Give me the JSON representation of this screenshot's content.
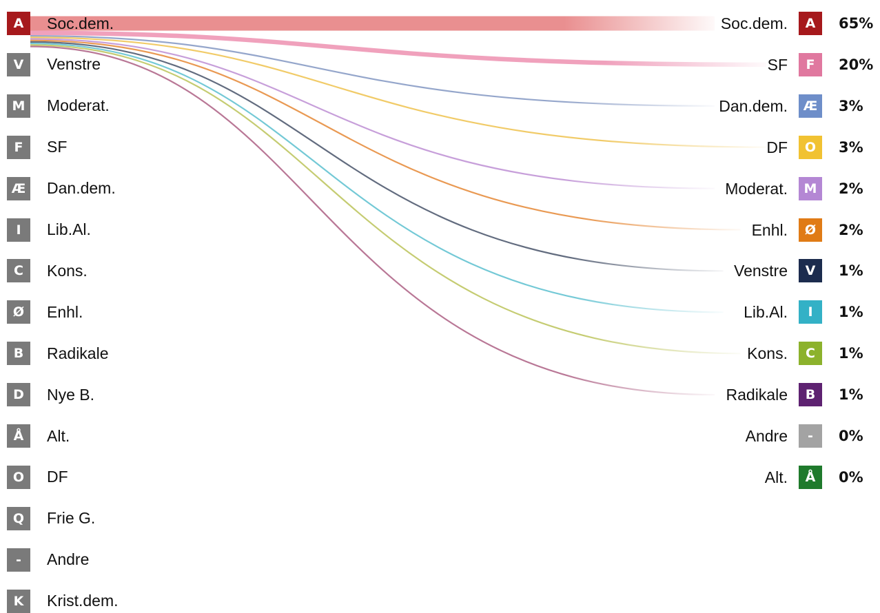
{
  "chart_data": {
    "type": "sankey",
    "source": {
      "code": "A",
      "name": "Soc.dem.",
      "color": "#a6191c"
    },
    "left_parties": [
      {
        "code": "A",
        "name": "Soc.dem.",
        "color": "#a6191c"
      },
      {
        "code": "V",
        "name": "Venstre",
        "color": "#7a7a7a"
      },
      {
        "code": "M",
        "name": "Moderat.",
        "color": "#7a7a7a"
      },
      {
        "code": "F",
        "name": "SF",
        "color": "#7a7a7a"
      },
      {
        "code": "Æ",
        "name": "Dan.dem.",
        "color": "#7a7a7a"
      },
      {
        "code": "I",
        "name": "Lib.Al.",
        "color": "#7a7a7a"
      },
      {
        "code": "C",
        "name": "Kons.",
        "color": "#7a7a7a"
      },
      {
        "code": "Ø",
        "name": "Enhl.",
        "color": "#7a7a7a"
      },
      {
        "code": "B",
        "name": "Radikale",
        "color": "#7a7a7a"
      },
      {
        "code": "D",
        "name": "Nye B.",
        "color": "#7a7a7a"
      },
      {
        "code": "Å",
        "name": "Alt.",
        "color": "#7a7a7a"
      },
      {
        "code": "O",
        "name": "DF",
        "color": "#7a7a7a"
      },
      {
        "code": "Q",
        "name": "Frie G.",
        "color": "#7a7a7a"
      },
      {
        "code": "-",
        "name": "Andre",
        "color": "#7a7a7a"
      },
      {
        "code": "K",
        "name": "Krist.dem.",
        "color": "#7a7a7a"
      }
    ],
    "targets": [
      {
        "code": "A",
        "name": "Soc.dem.",
        "value": 65,
        "label": "65%",
        "color": "#a6191c",
        "flow_color": "#e8898a"
      },
      {
        "code": "F",
        "name": "SF",
        "value": 20,
        "label": "20%",
        "color": "#e0789f",
        "flow_color": "#ef9cb9"
      },
      {
        "code": "Æ",
        "name": "Dan.dem.",
        "value": 3,
        "label": "3%",
        "color": "#6e8ec9",
        "flow_color": "#8fa1c8"
      },
      {
        "code": "O",
        "name": "DF",
        "value": 3,
        "label": "3%",
        "color": "#f1c232",
        "flow_color": "#f0c860"
      },
      {
        "code": "M",
        "name": "Moderat.",
        "value": 2,
        "label": "2%",
        "color": "#b487d4",
        "flow_color": "#c49ad8"
      },
      {
        "code": "Ø",
        "name": "Enhl.",
        "value": 2,
        "label": "2%",
        "color": "#e07b16",
        "flow_color": "#e8944a"
      },
      {
        "code": "V",
        "name": "Venstre",
        "value": 1,
        "label": "1%",
        "color": "#1c2c4e",
        "flow_color": "#5a6478"
      },
      {
        "code": "I",
        "name": "Lib.Al.",
        "value": 1,
        "label": "1%",
        "color": "#33b1c6",
        "flow_color": "#6cc6d4"
      },
      {
        "code": "C",
        "name": "Kons.",
        "value": 1,
        "label": "1%",
        "color": "#8cb22c",
        "flow_color": "#c2c96a"
      },
      {
        "code": "B",
        "name": "Radikale",
        "value": 1,
        "label": "1%",
        "color": "#5e2271",
        "flow_color": "#b57090"
      },
      {
        "code": "-",
        "name": "Andre",
        "value": 0,
        "label": "0%",
        "color": "#a3a3a3",
        "flow_color": "#a3a3a3"
      },
      {
        "code": "Å",
        "name": "Alt.",
        "value": 0,
        "label": "0%",
        "color": "#1f7a2c",
        "flow_color": "#3a9a48"
      }
    ]
  }
}
